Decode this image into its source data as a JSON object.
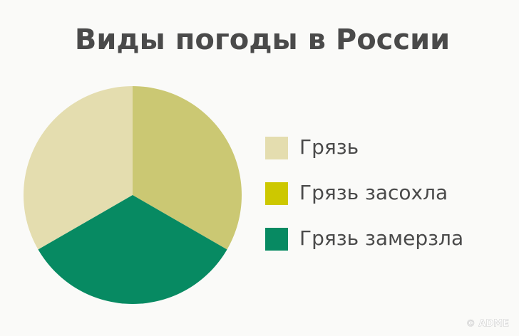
{
  "chart_data": {
    "type": "pie",
    "title": "Виды погоды в России",
    "categories": [
      "Грязь",
      "Грязь засохла",
      "Грязь замерзла"
    ],
    "values": [
      33.3,
      33.3,
      33.3
    ],
    "colors": [
      "#e4ddaf",
      "#cbc873",
      "#078a62"
    ],
    "legend_colors": [
      "#e4ddaf",
      "#cdc800",
      "#078a62"
    ],
    "watermark": "© ADME"
  }
}
